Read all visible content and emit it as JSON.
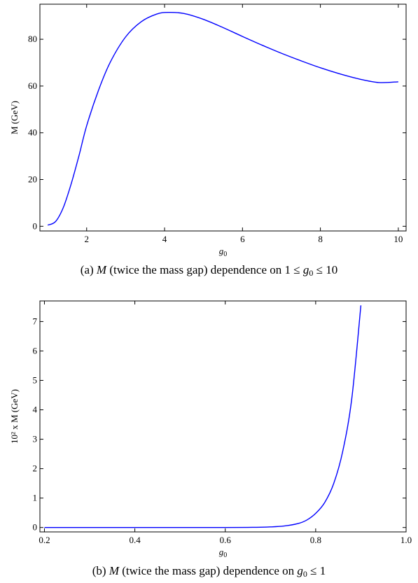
{
  "chart_data": [
    {
      "type": "line",
      "series": [
        {
          "color": "#0000ff",
          "x": [
            1.0,
            1.2,
            1.4,
            1.6,
            1.8,
            2.0,
            2.3,
            2.6,
            3.0,
            3.4,
            3.8,
            4.1,
            4.5,
            5.0,
            5.5,
            6.0,
            6.5,
            7.0,
            7.5,
            8.0,
            8.5,
            9.0,
            9.5,
            10.0
          ],
          "y": [
            0.5,
            2,
            8,
            18,
            30,
            43,
            58,
            70,
            81,
            87.5,
            90.8,
            91.5,
            91.0,
            88.5,
            85.0,
            81.2,
            77.5,
            74.0,
            70.8,
            67.8,
            65.2,
            63.0,
            61.5,
            61.8
          ]
        }
      ],
      "xlabel_var": "g",
      "xlabel_sub": "0",
      "ylabel": "M (GeV)",
      "xlim": [
        0.8,
        10.2
      ],
      "ylim": [
        -2,
        95
      ],
      "xticks": [
        2,
        4,
        6,
        8,
        10
      ],
      "yticks": [
        0,
        20,
        40,
        60,
        80
      ],
      "grid": false,
      "caption": {
        "tag": "(a)",
        "var": "M",
        "text_mid": "(twice the mass gap) dependence on 1 ≤ ",
        "var2": "g",
        "sub": "0",
        "text_end": " ≤ 10"
      }
    },
    {
      "type": "line",
      "series": [
        {
          "color": "#0000ff",
          "x": [
            0.2,
            0.4,
            0.6,
            0.66,
            0.7,
            0.73,
            0.76,
            0.78,
            0.8,
            0.82,
            0.84,
            0.86,
            0.88,
            0.9
          ],
          "y": [
            0,
            0,
            0,
            0.005,
            0.02,
            0.05,
            0.13,
            0.25,
            0.48,
            0.85,
            1.5,
            2.6,
            4.4,
            7.55
          ]
        }
      ],
      "xlabel_var": "g",
      "xlabel_sub": "0",
      "ylabel": "10² x M (GeV)",
      "xlim": [
        0.19,
        1.0
      ],
      "ylim": [
        -0.15,
        7.7
      ],
      "xticks": [
        0.2,
        0.4,
        0.6,
        0.8,
        1.0
      ],
      "xtick_labels": [
        "0.2",
        "0.4",
        "0.6",
        "0.8",
        "1.0"
      ],
      "yticks": [
        0,
        1,
        2,
        3,
        4,
        5,
        6,
        7
      ],
      "grid": false,
      "caption": {
        "tag": "(b)",
        "var": "M",
        "text_mid": "(twice the mass gap) dependence on ",
        "var2": "g",
        "sub": "0",
        "text_end": " ≤ 1"
      }
    }
  ]
}
